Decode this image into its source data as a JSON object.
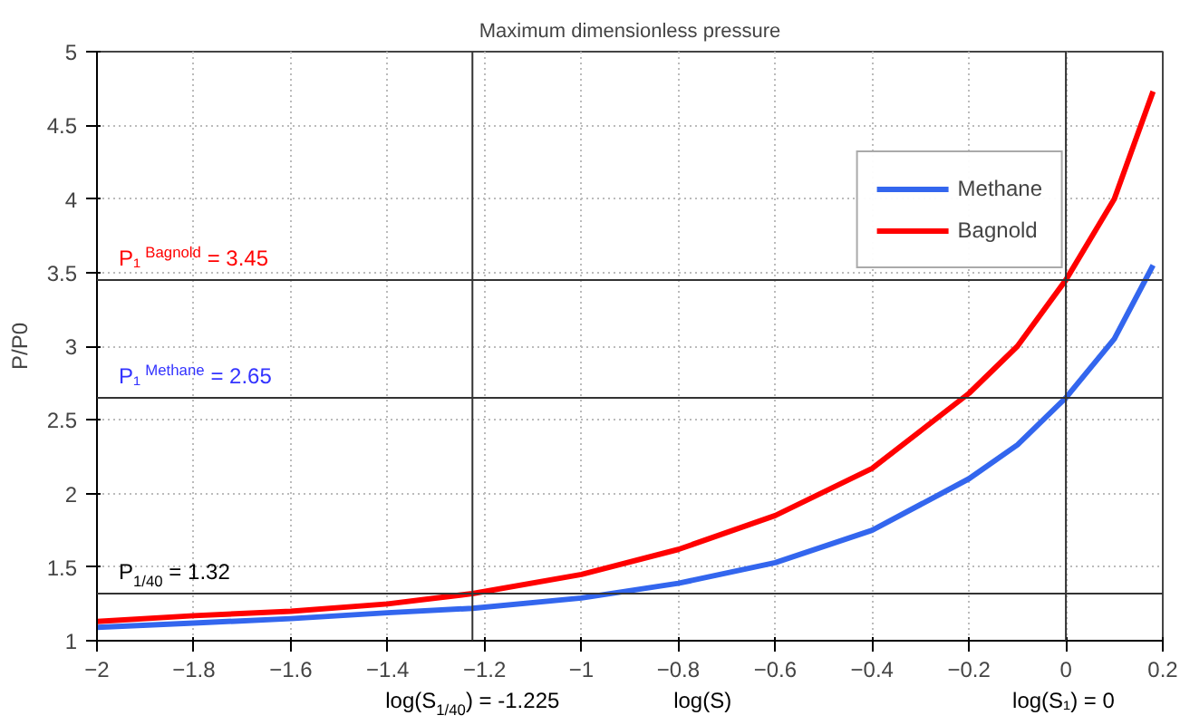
{
  "chart_data": {
    "type": "line",
    "title": "Maximum dimensionless pressure",
    "xlabel": "log(S)",
    "ylabel": "P/P0",
    "x": [
      -2,
      -1.8,
      -1.6,
      -1.4,
      -1.225,
      -1,
      -0.8,
      -0.6,
      -0.4,
      -0.2,
      -0.1,
      0,
      0.1,
      0.18
    ],
    "series": [
      {
        "name": "Methane",
        "color": "#3366ee",
        "values": [
          1.09,
          1.12,
          1.15,
          1.19,
          1.22,
          1.29,
          1.39,
          1.53,
          1.75,
          2.1,
          2.33,
          2.65,
          3.05,
          3.55
        ]
      },
      {
        "name": "Bagnold",
        "color": "#ff0000",
        "values": [
          1.13,
          1.17,
          1.2,
          1.25,
          1.32,
          1.45,
          1.62,
          1.85,
          2.17,
          2.68,
          3.0,
          3.45,
          4.0,
          4.73
        ]
      }
    ],
    "xlim": [
      -2,
      0.2
    ],
    "ylim": [
      1,
      5
    ],
    "xticks": [
      -2,
      -1.8,
      -1.6,
      -1.4,
      -1.2,
      -1,
      -0.8,
      -0.6,
      -0.4,
      -0.2,
      0,
      0.2
    ],
    "yticks": [
      1,
      1.5,
      2,
      2.5,
      3,
      3.5,
      4,
      4.5,
      5
    ],
    "ref_lines": [
      {
        "axis": "y",
        "value": 3.45,
        "label": "P₁$^{Bagnold}$ = 3.45",
        "color": "#333333"
      },
      {
        "axis": "y",
        "value": 2.65,
        "label": "P₁$^{Methane}$ = 2.65",
        "color": "#333333"
      },
      {
        "axis": "y",
        "value": 1.32,
        "label": "P$_{1/40}$ = 1.32",
        "color": "#333333"
      },
      {
        "axis": "x",
        "value": -1.225,
        "label": "log(S$_{1/40}$) = -1.225",
        "color": "#333333"
      },
      {
        "axis": "x",
        "value": 0,
        "label": "log(S₁) = 0",
        "color": "#333333"
      }
    ],
    "grid": true,
    "legend": "top right",
    "marker": "none",
    "line_style": "solid"
  }
}
